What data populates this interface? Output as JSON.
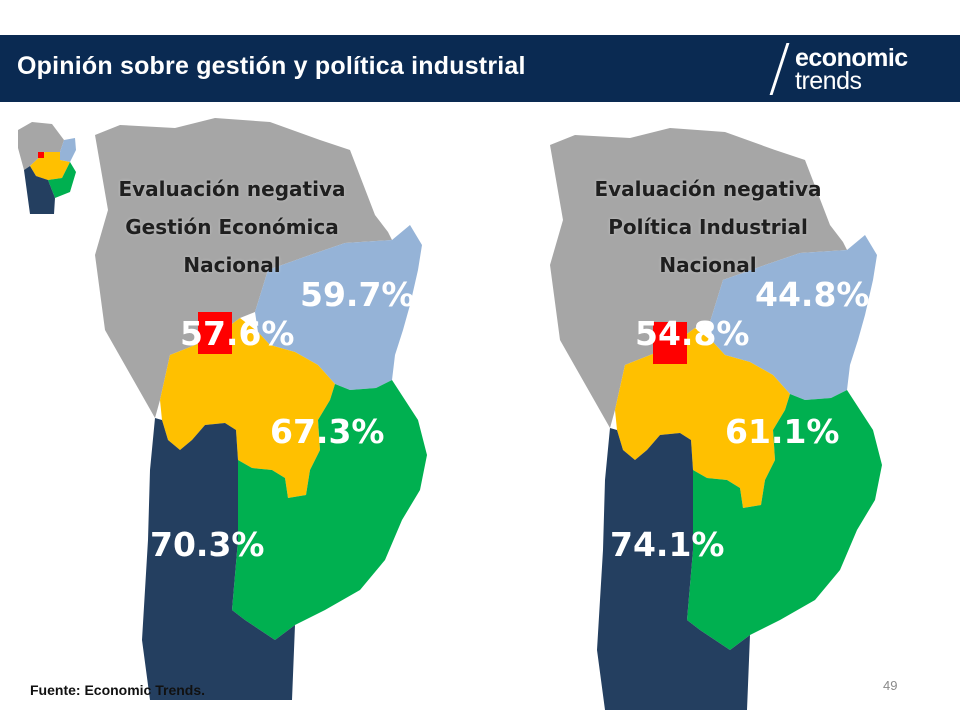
{
  "header": {
    "title": "Opinión sobre gestión y política industrial",
    "logo_top": "economic",
    "logo_bottom": "trends"
  },
  "maps": [
    {
      "title_lines": [
        "Evaluación negativa",
        "Gestión Económica",
        "Nacional"
      ],
      "regions": {
        "northeast": "59.7%",
        "center": "57.6%",
        "south_east": "67.3%",
        "southwest": "70.3%"
      }
    },
    {
      "title_lines": [
        "Evaluación negativa",
        "Política Industrial",
        "Nacional"
      ],
      "regions": {
        "northeast": "44.8%",
        "center": "54.8%",
        "south_east": "61.1%",
        "southwest": "74.1%"
      }
    }
  ],
  "colors": {
    "northwest": "#a6a6a6",
    "northeast": "#95b3d7",
    "center": "#ffc000",
    "southeast": "#00b050",
    "southwest": "#243f60",
    "capital": "#ff0000",
    "header": "#0a2a52"
  },
  "footer": {
    "source": "Fuente: Economic Trends.",
    "page": "49"
  }
}
